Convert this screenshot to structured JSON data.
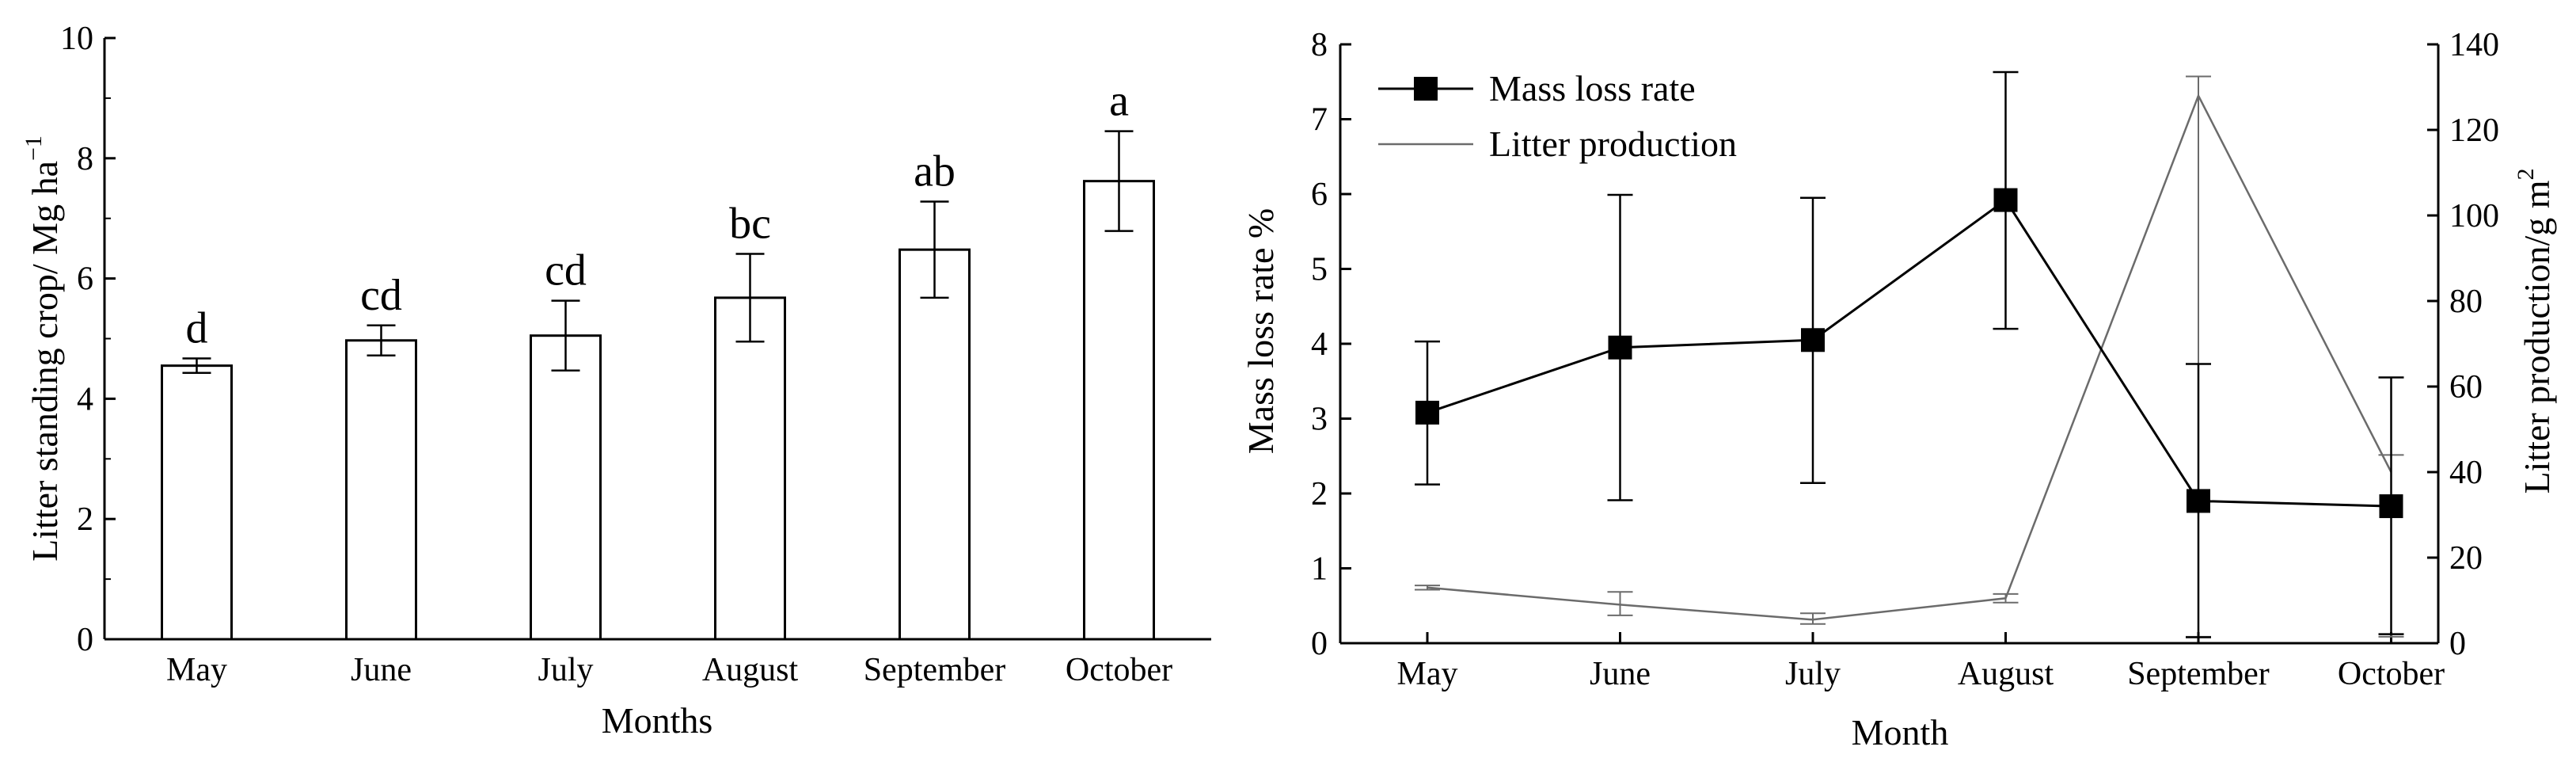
{
  "chart_data": [
    {
      "type": "bar",
      "categories": [
        "May",
        "June",
        "July",
        "August",
        "September",
        "October"
      ],
      "values": [
        4.55,
        4.97,
        5.05,
        5.68,
        6.48,
        7.62
      ],
      "errors": [
        0.12,
        0.25,
        0.58,
        0.73,
        0.8,
        0.83
      ],
      "letters": [
        "d",
        "cd",
        "cd",
        "bc",
        "ab",
        "a"
      ],
      "xlabel": "Months",
      "ylabel": "Litter standing crop/ Mg ha",
      "ylabel_superscript": "−1",
      "ylim": [
        0,
        10
      ],
      "yticks": [
        "0",
        "2",
        "4",
        "6",
        "8",
        "10"
      ],
      "grid": false
    },
    {
      "type": "line",
      "categories": [
        "May",
        "June",
        "July",
        "August",
        "September",
        "October"
      ],
      "xlabel": "Month",
      "ylabel": "Mass loss rate %",
      "ylabel_right": "Litter production/g m",
      "ylabel_right_superscript": "2",
      "ylim": [
        0,
        8
      ],
      "ylim_right": [
        0,
        140
      ],
      "yticks": [
        "0",
        "1",
        "2",
        "3",
        "4",
        "5",
        "6",
        "7",
        "8"
      ],
      "yticks_right": [
        "0",
        "20",
        "40",
        "60",
        "80",
        "100",
        "120",
        "140"
      ],
      "legend_position": "top-left",
      "series": [
        {
          "name": "Mass loss rate",
          "axis": "left",
          "marker": "square",
          "color": "#000000",
          "values": [
            3.08,
            3.95,
            4.05,
            5.92,
            1.9,
            1.83
          ],
          "error_low": [
            2.12,
            1.91,
            2.14,
            4.2,
            0.08,
            0.12
          ],
          "error_high": [
            4.03,
            5.99,
            5.95,
            7.63,
            3.73,
            3.55
          ]
        },
        {
          "name": "Litter production",
          "axis": "right",
          "marker": "none",
          "color": "#6b6b6b",
          "values": [
            13,
            9,
            5.5,
            10.5,
            128,
            40
          ],
          "error_low": [
            12.5,
            6.5,
            4.5,
            9.5,
            1.5,
            1.5
          ],
          "error_high": [
            13.5,
            12,
            7,
            11.5,
            132.5,
            44
          ]
        }
      ],
      "grid": false
    }
  ]
}
